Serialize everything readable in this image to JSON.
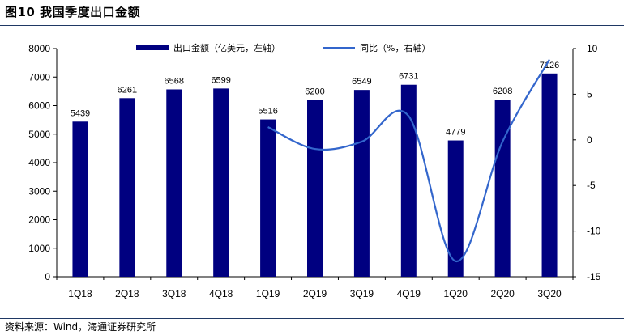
{
  "header": {
    "title": "图10 我国季度出口金额"
  },
  "footer": {
    "source": "资料来源：Wind，海通证券研究所"
  },
  "chart_data": {
    "type": "bar",
    "title": "图10 我国季度出口金额",
    "categories": [
      "1Q18",
      "2Q18",
      "3Q18",
      "4Q18",
      "1Q19",
      "2Q19",
      "3Q19",
      "4Q19",
      "1Q20",
      "2Q20",
      "3Q20"
    ],
    "series": [
      {
        "name": "出口金额（亿美元，左轴）",
        "type": "bar",
        "axis": "left",
        "color": "#000080",
        "values": [
          5439,
          6261,
          6568,
          6599,
          5516,
          6200,
          6549,
          6731,
          4779,
          6208,
          7126
        ]
      },
      {
        "name": "同比（%，右轴）",
        "type": "line",
        "axis": "right",
        "color": "#3366cc",
        "values": [
          null,
          null,
          null,
          null,
          1.4,
          -1.0,
          -0.2,
          2.6,
          -13.3,
          -0.2,
          8.8
        ]
      }
    ],
    "y_left": {
      "min": 0,
      "max": 8000,
      "ticks": [
        0,
        1000,
        2000,
        3000,
        4000,
        5000,
        6000,
        7000,
        8000
      ]
    },
    "y_right": {
      "min": -15,
      "max": 10,
      "ticks": [
        -15,
        -10,
        -5,
        0,
        5,
        10
      ]
    },
    "grid": false,
    "legend_position": "top"
  }
}
